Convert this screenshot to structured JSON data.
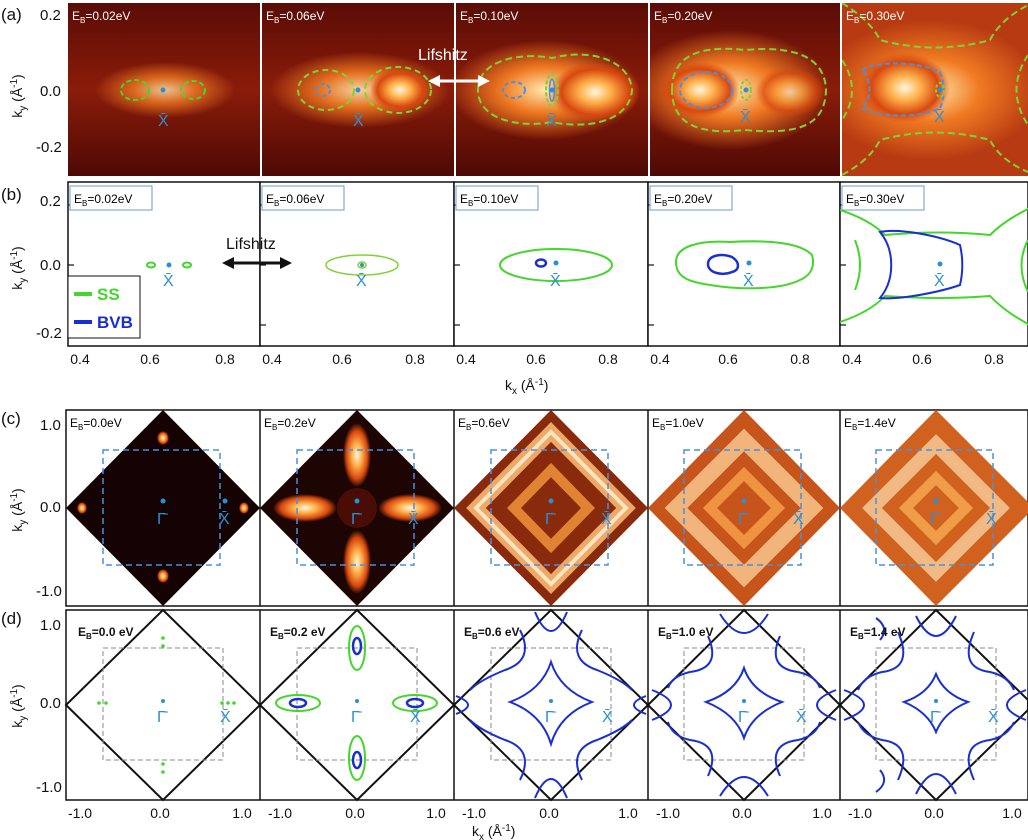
{
  "row_labels": [
    "(a)",
    "(b)",
    "(c)",
    "(d)"
  ],
  "colors": {
    "ss": "#44d62c",
    "bvb": "#1a2fd0",
    "cyan": "#2b8fd6",
    "bz": "#111111",
    "dashed_blue": "#4a8fe0",
    "dashed_green": "#7fd234"
  },
  "row_a": {
    "energies": [
      "E",
      "E",
      "E",
      "E",
      "E"
    ],
    "energy_values": [
      "=0.02eV",
      "=0.06eV",
      "=0.10eV",
      "=0.20eV",
      "=0.30eV"
    ],
    "subscript": "B",
    "point_label": "X̄",
    "lifshitz": "Lifshitz",
    "y_ticks": [
      "0.2",
      "0.0",
      "-0.2"
    ]
  },
  "row_b": {
    "energy_values": [
      "=0.02eV",
      "=0.06eV",
      "=0.10eV",
      "=0.20eV",
      "=0.30eV"
    ],
    "point_label": "X̄",
    "lifshitz": "Lifshitz",
    "legend": {
      "ss": "SS",
      "bvb": "BVB"
    },
    "y_ticks": [
      "0.2",
      "0.0",
      "-0.2"
    ],
    "x_ticks": [
      "0.4",
      "0.6",
      "0.8",
      "0.4",
      "0.6",
      "0.8",
      "0.4",
      "0.6",
      "0.8",
      "0.4",
      "0.6",
      "0.8",
      "0.4",
      "0.6",
      "0.8"
    ],
    "xlabel_main": "k",
    "xlabel_sub": "x",
    "xlabel_unit": " (Å",
    "xlabel_exp": "-1",
    "xlabel_close": ")"
  },
  "row_c": {
    "energy_values": [
      "=0.0eV",
      "=0.2eV",
      "=0.6eV",
      "=1.0eV",
      "=1.4eV"
    ],
    "gamma_label": "Γ̄",
    "x_label": "X̄",
    "y_ticks": [
      "1.0",
      "0.0",
      "-1.0"
    ]
  },
  "row_d": {
    "energy_values": [
      "=0.0 eV",
      "=0.2 eV",
      "=0.6 eV",
      "=1.0 eV",
      "=1.4 eV"
    ],
    "gamma_label": "Γ̄",
    "x_label": "X̄",
    "y_ticks": [
      "1.0",
      "0.0",
      "-1.0"
    ],
    "x_ticks": [
      "-1.0",
      "0.0",
      "1.0",
      "-1.0",
      "0.0",
      "1.0",
      "-1.0",
      "0.0",
      "1.0",
      "-1.0",
      "0.0",
      "1.0",
      "-1.0",
      "0.0",
      "1.0"
    ]
  },
  "ylabel": {
    "main": "k",
    "sub": "y",
    "unit": " (Å",
    "exp": "-1",
    "close": ")"
  },
  "xlabel": {
    "main": "k",
    "sub": "x",
    "unit": " (Å",
    "exp": "-1",
    "close": ")"
  }
}
